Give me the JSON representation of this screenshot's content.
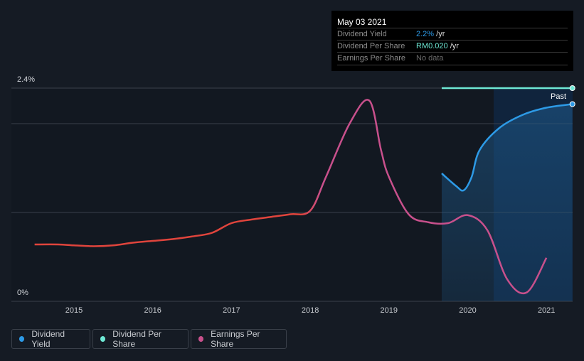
{
  "tooltip": {
    "date": "May 03 2021",
    "rows": [
      {
        "label": "Dividend Yield",
        "value": "2.2%",
        "unit": " /yr",
        "color": "#2d9ae6"
      },
      {
        "label": "Dividend Per Share",
        "value": "RM0.020",
        "unit": " /yr",
        "color": "#6ee8d4"
      },
      {
        "label": "Earnings Per Share",
        "value": "No data",
        "unit": "",
        "color": "#6b6b6b"
      }
    ]
  },
  "past_label": "Past",
  "legend": [
    {
      "label": "Dividend Yield",
      "color": "#2d9ae6"
    },
    {
      "label": "Dividend Per Share",
      "color": "#6ee8d4"
    },
    {
      "label": "Earnings Per Share",
      "color": "#c8508c"
    }
  ],
  "chart_data": {
    "type": "line",
    "ylim": [
      0,
      2.4
    ],
    "y_tick_labels": [
      "0%",
      "2.4%"
    ],
    "x_tick_labels": [
      "2015",
      "2016",
      "2017",
      "2018",
      "2019",
      "2020",
      "2021"
    ],
    "xlim": [
      2014.0,
      2021.34
    ],
    "past_region_start": 2020.33,
    "series": [
      {
        "name": "Dividend Yield",
        "unit": "%",
        "color": "#2d9ae6",
        "points": [
          [
            2019.67,
            1.44
          ],
          [
            2019.85,
            1.3
          ],
          [
            2019.95,
            1.25
          ],
          [
            2020.05,
            1.4
          ],
          [
            2020.15,
            1.7
          ],
          [
            2020.4,
            1.95
          ],
          [
            2020.7,
            2.1
          ],
          [
            2021.0,
            2.18
          ],
          [
            2021.33,
            2.22
          ]
        ]
      },
      {
        "name": "Dividend Per Share",
        "unit": "RM",
        "color": "#6ee8d4",
        "points": [
          [
            2019.67,
            0.02
          ],
          [
            2021.33,
            0.02
          ]
        ]
      },
      {
        "name": "Earnings Per Share",
        "unit": "relative",
        "color": "#c8508c",
        "points": [
          [
            2014.5,
            0.64
          ],
          [
            2014.8,
            0.64
          ],
          [
            2015.0,
            0.63
          ],
          [
            2015.25,
            0.62
          ],
          [
            2015.5,
            0.63
          ],
          [
            2015.75,
            0.66
          ],
          [
            2016.0,
            0.68
          ],
          [
            2016.25,
            0.7
          ],
          [
            2016.5,
            0.73
          ],
          [
            2016.75,
            0.77
          ],
          [
            2017.0,
            0.88
          ],
          [
            2017.25,
            0.92
          ],
          [
            2017.5,
            0.95
          ],
          [
            2017.75,
            0.98
          ],
          [
            2018.0,
            1.02
          ],
          [
            2018.2,
            1.4
          ],
          [
            2018.5,
            2.0
          ],
          [
            2018.75,
            2.26
          ],
          [
            2018.9,
            1.7
          ],
          [
            2019.0,
            1.4
          ],
          [
            2019.25,
            0.98
          ],
          [
            2019.5,
            0.89
          ],
          [
            2019.75,
            0.88
          ],
          [
            2020.0,
            0.97
          ],
          [
            2020.25,
            0.8
          ],
          [
            2020.5,
            0.25
          ],
          [
            2020.75,
            0.1
          ],
          [
            2021.0,
            0.49
          ]
        ]
      }
    ]
  }
}
